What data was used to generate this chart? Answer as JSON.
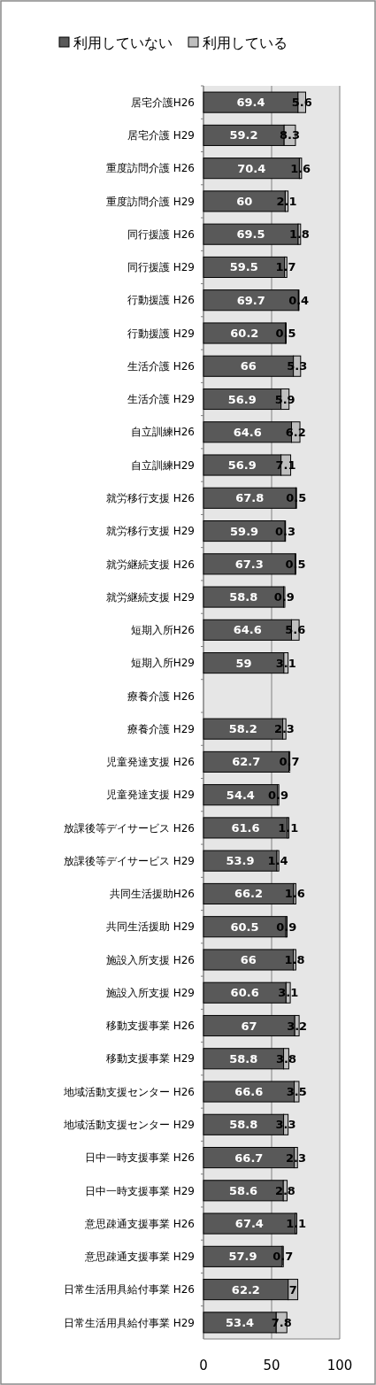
{
  "chart_data": {
    "type": "bar",
    "orientation": "horizontal",
    "stacked": true,
    "legend": "top",
    "grid": "x",
    "data_labels": true,
    "categories": [
      "居宅介護H26",
      "居宅介護 H29",
      "重度訪問介護 H26",
      "重度訪問介護 H29",
      "同行援護 H26",
      "同行援護 H29",
      "行動援護 H26",
      "行動援護 H29",
      "生活介護 H26",
      "生活介護 H29",
      "自立訓練H26",
      "自立訓練H29",
      "就労移行支援 H26",
      "就労移行支援 H29",
      "就労継続支援 H26",
      "就労継続支援 H29",
      "短期入所H26",
      "短期入所H29",
      "療養介護 H26",
      "療養介護 H29",
      "児童発達支援 H26",
      "児童発達支援 H29",
      "放課後等デイサービス H26",
      "放課後等デイサービス H29",
      "共同生活援助H26",
      "共同生活援助 H29",
      "施設入所支援 H26",
      "施設入所支援 H29",
      "移動支援事業 H26",
      "移動支援事業 H29",
      "地域活動支援センター H26",
      "地域活動支援センター H29",
      "日中一時支援事業 H26",
      "日中一時支援事業 H29",
      "意思疎通支援事業 H26",
      "意思疎通支援事業 H29",
      "日常生活用具給付事業 H26",
      "日常生活用具給付事業 H29"
    ],
    "series": [
      {
        "name": "利用していない",
        "color": "#595959",
        "values": [
          69.4,
          59.2,
          70.4,
          60,
          69.5,
          59.5,
          69.7,
          60.2,
          66,
          56.9,
          64.6,
          56.9,
          67.8,
          59.9,
          67.3,
          58.8,
          64.6,
          59,
          null,
          58.2,
          62.7,
          54.4,
          61.6,
          53.9,
          66.2,
          60.5,
          66,
          60.6,
          67,
          58.8,
          66.6,
          58.8,
          66.7,
          58.6,
          67.4,
          57.9,
          62.2,
          53.4
        ]
      },
      {
        "name": "利用している",
        "color": "#bfbfbf",
        "values": [
          5.6,
          8.3,
          1.6,
          2.1,
          1.8,
          1.7,
          0.4,
          0.5,
          5.3,
          5.9,
          6.2,
          7.1,
          0.5,
          0.3,
          0.5,
          0.9,
          5.6,
          3.1,
          null,
          2.3,
          0.7,
          0.9,
          1.1,
          1.4,
          1.6,
          0.9,
          1.8,
          3.1,
          3.2,
          3.8,
          3.5,
          3.3,
          2.3,
          2.8,
          1.1,
          0.7,
          7,
          7.8
        ]
      }
    ],
    "xlim": [
      0,
      100
    ],
    "xticks": [
      0,
      50,
      100
    ]
  }
}
